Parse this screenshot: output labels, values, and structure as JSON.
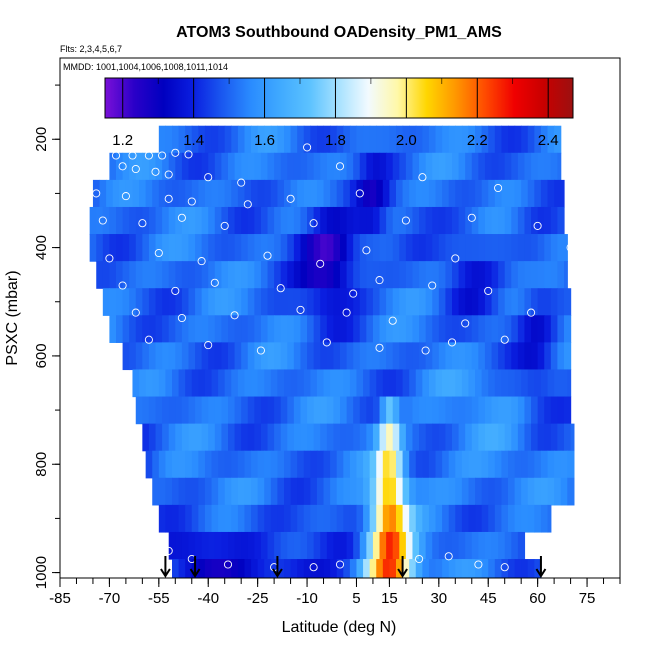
{
  "chart_data": {
    "type": "heatmap",
    "title": "ATOM3 Southbound OADensity_PM1_AMS",
    "flights_note": "Flts: 2,3,4,5,6,7",
    "dates_note": "MMDD: 1001,1004,1006,1008,1011,1014",
    "xlabel": "Latitude (deg N)",
    "ylabel": "PSXC (mbar)",
    "xlim": [
      -85,
      85
    ],
    "ylim": [
      1010,
      50
    ],
    "x_ticks": [
      -85,
      -70,
      -55,
      -40,
      -25,
      -10,
      5,
      15,
      30,
      45,
      60,
      75
    ],
    "y_ticks": [
      200,
      400,
      600,
      800,
      1000
    ],
    "colorbar": {
      "min": 1.15,
      "max": 2.47,
      "ticks": [
        1.2,
        1.4,
        1.6,
        1.8,
        2.0,
        2.2,
        2.4
      ],
      "colors": [
        "#7a10d8",
        "#2a00c8",
        "#0000c0",
        "#0a1ee0",
        "#1a58f0",
        "#2a8cff",
        "#40aaff",
        "#5cc2ff",
        "#a8e2ff",
        "#f2faff",
        "#fff8a8",
        "#ffd600",
        "#ff9600",
        "#ff4a00",
        "#f00000",
        "#c80000",
        "#9c1010"
      ]
    },
    "grid": false,
    "legend": "colorbar-top",
    "pressure_levels": [
      200,
      250,
      300,
      350,
      400,
      450,
      500,
      550,
      600,
      650,
      700,
      750,
      800,
      850,
      900,
      950,
      1000
    ],
    "level_lat_ranges": [
      [
        -55,
        67
      ],
      [
        -70,
        67
      ],
      [
        -75,
        68
      ],
      [
        -76,
        68
      ],
      [
        -76,
        69
      ],
      [
        -74,
        69
      ],
      [
        -72,
        70
      ],
      [
        -70,
        70
      ],
      [
        -66,
        70
      ],
      [
        -63,
        70
      ],
      [
        -62,
        70
      ],
      [
        -60,
        71
      ],
      [
        -59,
        71
      ],
      [
        -57,
        71
      ],
      [
        -55,
        64
      ],
      [
        -52,
        56
      ],
      [
        -51,
        61
      ]
    ],
    "anomalies": {
      "plume_center_lat": 15,
      "plume_peak_value": 2.3,
      "plume_top_pressure": 650,
      "low_density_center_lat": -3,
      "low_density_center_pressure": 420
    },
    "profile_arrow_lats": [
      -53,
      -44,
      -19,
      19,
      61
    ],
    "measurement_points": [
      [
        -72,
        230
      ],
      [
        -68,
        230
      ],
      [
        -63,
        230
      ],
      [
        -58,
        230
      ],
      [
        -54,
        230
      ],
      [
        -50,
        225
      ],
      [
        -46,
        228
      ],
      [
        -10,
        215
      ],
      [
        -66,
        250
      ],
      [
        -62,
        255
      ],
      [
        -56,
        260
      ],
      [
        -52,
        265
      ],
      [
        -40,
        270
      ],
      [
        -30,
        280
      ],
      [
        0,
        250
      ],
      [
        25,
        270
      ],
      [
        -74,
        300
      ],
      [
        -65,
        305
      ],
      [
        -52,
        310
      ],
      [
        -45,
        315
      ],
      [
        -28,
        320
      ],
      [
        -15,
        310
      ],
      [
        6,
        300
      ],
      [
        48,
        290
      ],
      [
        -72,
        350
      ],
      [
        -60,
        355
      ],
      [
        -48,
        345
      ],
      [
        -35,
        360
      ],
      [
        -8,
        355
      ],
      [
        20,
        350
      ],
      [
        40,
        345
      ],
      [
        60,
        360
      ],
      [
        -70,
        420
      ],
      [
        -55,
        410
      ],
      [
        -42,
        425
      ],
      [
        -22,
        415
      ],
      [
        -6,
        430
      ],
      [
        8,
        405
      ],
      [
        35,
        420
      ],
      [
        70,
        400
      ],
      [
        -66,
        470
      ],
      [
        -50,
        480
      ],
      [
        -38,
        465
      ],
      [
        -18,
        475
      ],
      [
        4,
        485
      ],
      [
        12,
        460
      ],
      [
        28,
        470
      ],
      [
        45,
        480
      ],
      [
        -62,
        520
      ],
      [
        -48,
        530
      ],
      [
        -32,
        525
      ],
      [
        -12,
        515
      ],
      [
        2,
        520
      ],
      [
        16,
        535
      ],
      [
        38,
        540
      ],
      [
        58,
        520
      ],
      [
        -58,
        570
      ],
      [
        -40,
        580
      ],
      [
        -24,
        590
      ],
      [
        -4,
        575
      ],
      [
        12,
        585
      ],
      [
        26,
        590
      ],
      [
        34,
        575
      ],
      [
        50,
        570
      ],
      [
        -52,
        960
      ],
      [
        -45,
        975
      ],
      [
        -34,
        985
      ],
      [
        -20,
        990
      ],
      [
        -8,
        990
      ],
      [
        0,
        985
      ],
      [
        24,
        975
      ],
      [
        33,
        970
      ],
      [
        42,
        985
      ],
      [
        50,
        990
      ]
    ]
  }
}
